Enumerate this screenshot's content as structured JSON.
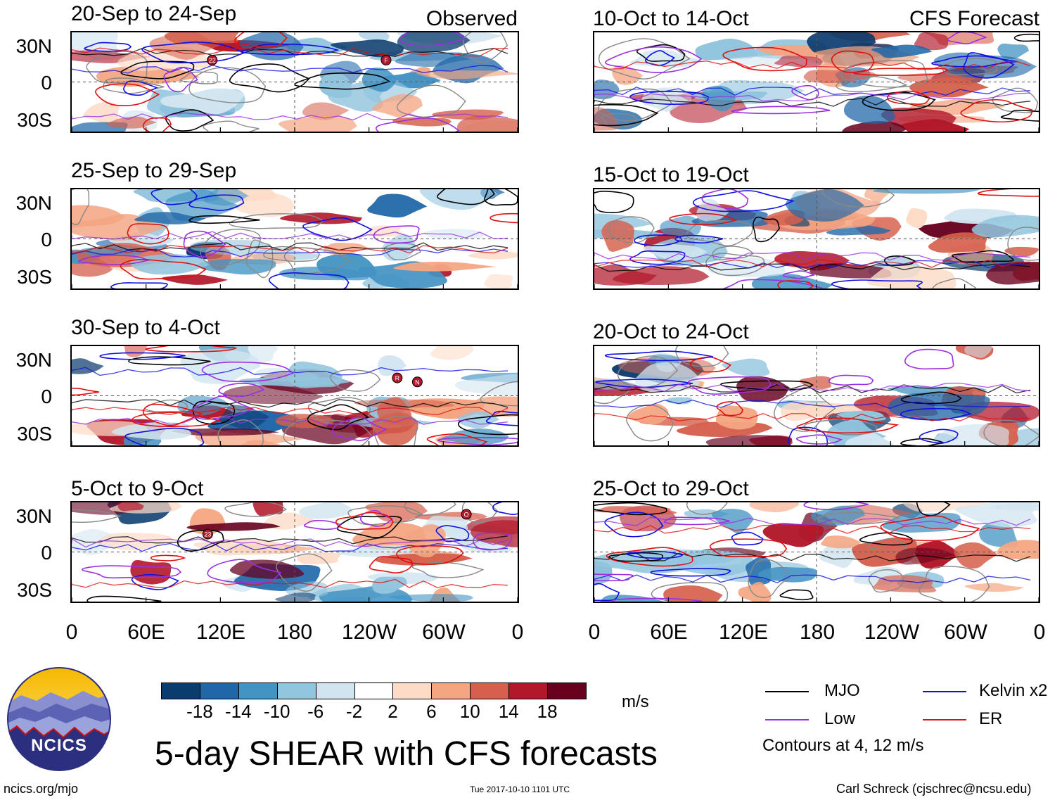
{
  "header": {
    "observed_label": "Observed",
    "forecast_label": "CFS Forecast"
  },
  "panels": {
    "observed": [
      {
        "period": "20-Sep to 24-Sep",
        "storms": [
          "22",
          "F"
        ]
      },
      {
        "period": "25-Sep to 29-Sep",
        "storms": []
      },
      {
        "period": "30-Sep to 4-Oct",
        "storms": [
          "R",
          "N"
        ]
      },
      {
        "period": "5-Oct to 9-Oct",
        "storms": [
          "23",
          "O"
        ]
      }
    ],
    "forecast": [
      {
        "period": "10-Oct to 14-Oct"
      },
      {
        "period": "15-Oct to 19-Oct"
      },
      {
        "period": "20-Oct to 24-Oct"
      },
      {
        "period": "25-Oct to 29-Oct"
      }
    ]
  },
  "axes": {
    "lat_labels": [
      "30N",
      "0",
      "30S"
    ],
    "lon_labels": [
      "0",
      "60E",
      "120E",
      "180",
      "120W",
      "60W",
      "0"
    ]
  },
  "colorbar": {
    "ticks": [
      "-18",
      "-14",
      "-10",
      "-6",
      "-2",
      "2",
      "6",
      "10",
      "14",
      "18"
    ],
    "colors": [
      "#0b3c6e",
      "#1f67a8",
      "#4393c3",
      "#92c5de",
      "#d1e5f0",
      "#ffffff",
      "#fddbc7",
      "#f4a582",
      "#d6604d",
      "#b2182b",
      "#67001f"
    ],
    "units": "m/s"
  },
  "legend": {
    "items": [
      {
        "label": "MJO",
        "color": "#000000"
      },
      {
        "label": "Kelvin x2",
        "color": "#1010e0"
      },
      {
        "label": "Low",
        "color": "#9a30e0"
      },
      {
        "label": "ER",
        "color": "#e01010"
      }
    ],
    "contours_note": "Contours at 4, 12 m/s"
  },
  "logo": {
    "text": "NCICS"
  },
  "title": "5-day SHEAR with CFS forecasts",
  "footer": {
    "url": "ncics.org/mjo",
    "timestamp": "Tue 2017-10-10 1101 UTC",
    "author": "Carl Schreck (cjschrec@ncsu.edu)"
  }
}
